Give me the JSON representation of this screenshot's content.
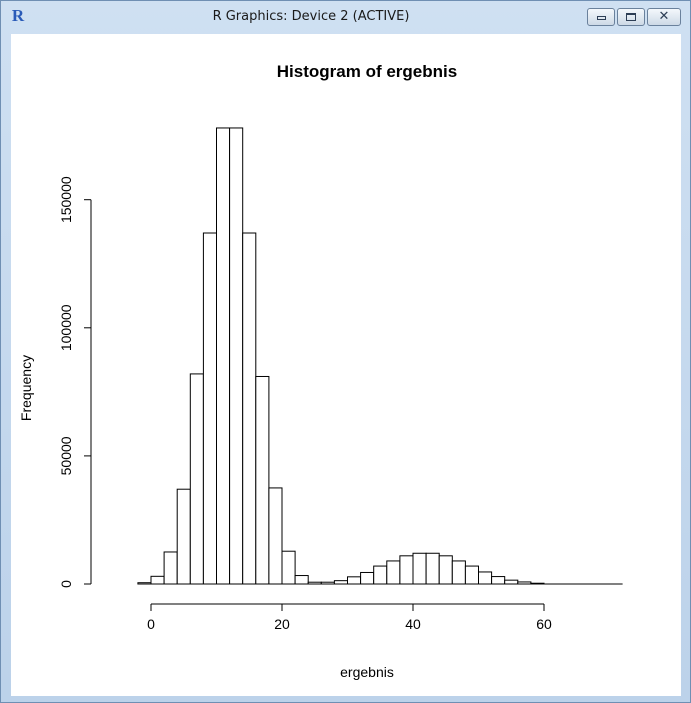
{
  "window": {
    "app_icon": "R",
    "title": "R Graphics: Device 2 (ACTIVE)",
    "icons": [
      "r-logo-icon",
      "minimize-icon",
      "maximize-icon",
      "close-icon"
    ]
  },
  "chart_data": {
    "type": "bar",
    "title": "Histogram of ergebnis",
    "xlabel": "ergebnis",
    "ylabel": "Frequency",
    "xlim": [
      -6,
      72
    ],
    "ylim": [
      0,
      178000
    ],
    "x_ticks": [
      0,
      20,
      40,
      60
    ],
    "y_ticks": [
      0,
      50000,
      100000,
      150000
    ],
    "bin_width": 2,
    "bins": [
      {
        "x0": -2,
        "x1": 0,
        "count": 500
      },
      {
        "x0": 0,
        "x1": 2,
        "count": 3000
      },
      {
        "x0": 2,
        "x1": 4,
        "count": 12500
      },
      {
        "x0": 4,
        "x1": 6,
        "count": 37000
      },
      {
        "x0": 6,
        "x1": 8,
        "count": 82000
      },
      {
        "x0": 8,
        "x1": 10,
        "count": 137000
      },
      {
        "x0": 10,
        "x1": 12,
        "count": 178000
      },
      {
        "x0": 12,
        "x1": 14,
        "count": 178000
      },
      {
        "x0": 14,
        "x1": 16,
        "count": 137000
      },
      {
        "x0": 16,
        "x1": 18,
        "count": 81000
      },
      {
        "x0": 18,
        "x1": 20,
        "count": 37500
      },
      {
        "x0": 20,
        "x1": 22,
        "count": 12800
      },
      {
        "x0": 22,
        "x1": 24,
        "count": 3300
      },
      {
        "x0": 24,
        "x1": 26,
        "count": 700
      },
      {
        "x0": 26,
        "x1": 28,
        "count": 700
      },
      {
        "x0": 28,
        "x1": 30,
        "count": 1300
      },
      {
        "x0": 30,
        "x1": 32,
        "count": 2800
      },
      {
        "x0": 32,
        "x1": 34,
        "count": 4500
      },
      {
        "x0": 34,
        "x1": 36,
        "count": 7000
      },
      {
        "x0": 36,
        "x1": 38,
        "count": 9000
      },
      {
        "x0": 38,
        "x1": 40,
        "count": 11000
      },
      {
        "x0": 40,
        "x1": 42,
        "count": 12000
      },
      {
        "x0": 42,
        "x1": 44,
        "count": 12000
      },
      {
        "x0": 44,
        "x1": 46,
        "count": 11000
      },
      {
        "x0": 46,
        "x1": 48,
        "count": 9000
      },
      {
        "x0": 48,
        "x1": 50,
        "count": 7000
      },
      {
        "x0": 50,
        "x1": 52,
        "count": 4700
      },
      {
        "x0": 52,
        "x1": 54,
        "count": 2900
      },
      {
        "x0": 54,
        "x1": 56,
        "count": 1500
      },
      {
        "x0": 56,
        "x1": 58,
        "count": 800
      },
      {
        "x0": 58,
        "x1": 60,
        "count": 300
      },
      {
        "x0": 60,
        "x1": 72,
        "count": 0
      }
    ],
    "grid": false,
    "legend": "none"
  }
}
